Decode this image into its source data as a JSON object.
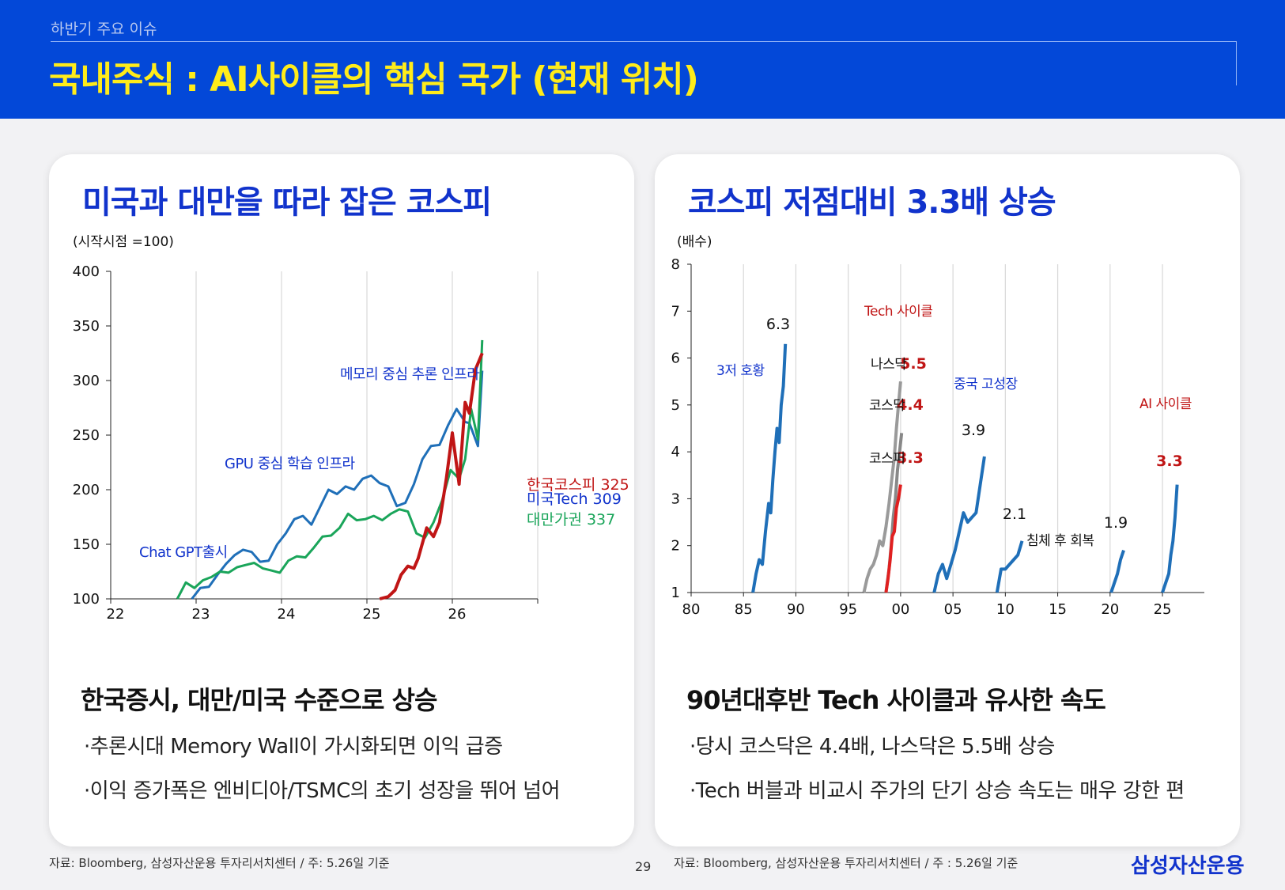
{
  "header": {
    "section": "하반기 주요 이슈",
    "title": "국내주식 : AI사이클의 핵심 국가 (현재 위치)"
  },
  "left": {
    "title": "미국과 대만을 따라 잡은 코스피",
    "summary": "한국증시, 대만/미국 수준으로 상승",
    "bullets": [
      "추론시대 Memory Wall이 가시화되면 이익 급증",
      "이익 증가폭은 엔비디아/TSMC의 초기 성장을 뛰어 넘어"
    ],
    "source": "자료: Bloomberg, 삼성자산운용 투자리서치센터 / 주: 5.26일 기준"
  },
  "right": {
    "title": "코스피 저점대비 3.3배 상승",
    "summary": "90년대후반 Tech 사이클과 유사한 속도",
    "bullets": [
      "당시 코스닥은 4.4배, 나스닥은 5.5배 상승",
      "Tech 버블과 비교시 주가의 단기 상승 속도는 매우 강한 편"
    ],
    "source": "자료: Bloomberg, 삼성자산운용 투자리서치센터 / 주 : 5.26일 기준"
  },
  "footer": {
    "page": "29",
    "brand": "삼성자산운용"
  },
  "chart_data": [
    {
      "type": "line",
      "unit_label": "(시작시점 =100)",
      "xlim": [
        22,
        27
      ],
      "ylim": [
        100,
        400
      ],
      "xticks": [
        "22",
        "23",
        "24",
        "25",
        "26"
      ],
      "yticks": [
        100,
        150,
        200,
        250,
        300,
        350,
        400
      ],
      "grid": "vertical",
      "series": [
        {
          "name": "미국Tech",
          "end_label": "미국Tech 309",
          "color": "#1f6fb8",
          "x": [
            22.95,
            23.05,
            23.15,
            23.25,
            23.35,
            23.45,
            23.55,
            23.65,
            23.75,
            23.85,
            23.95,
            24.05,
            24.15,
            24.25,
            24.35,
            24.45,
            24.55,
            24.65,
            24.75,
            24.85,
            24.95,
            25.05,
            25.15,
            25.25,
            25.35,
            25.45,
            25.55,
            25.65,
            25.75,
            25.85,
            25.95,
            26.05,
            26.15,
            26.2,
            26.3,
            26.35
          ],
          "y": [
            100,
            110,
            111,
            122,
            132,
            140,
            145,
            143,
            134,
            135,
            150,
            160,
            173,
            176,
            168,
            184,
            200,
            196,
            203,
            200,
            210,
            213,
            206,
            203,
            185,
            188,
            205,
            228,
            240,
            241,
            259,
            274,
            262,
            261,
            240,
            309
          ]
        },
        {
          "name": "대만가권",
          "end_label": "대만가권 337",
          "color": "#1aa55a",
          "x": [
            22.78,
            22.88,
            22.98,
            23.08,
            23.18,
            23.28,
            23.38,
            23.48,
            23.58,
            23.68,
            23.78,
            23.88,
            23.98,
            24.08,
            24.18,
            24.28,
            24.38,
            24.48,
            24.58,
            24.68,
            24.78,
            24.88,
            24.98,
            25.08,
            25.18,
            25.28,
            25.38,
            25.48,
            25.58,
            25.68,
            25.78,
            25.88,
            25.98,
            26.08,
            26.15,
            26.22,
            26.3,
            26.35
          ],
          "y": [
            100,
            115,
            110,
            117,
            120,
            125,
            124,
            129,
            131,
            133,
            128,
            126,
            124,
            135,
            139,
            138,
            147,
            157,
            158,
            165,
            178,
            172,
            173,
            176,
            172,
            178,
            182,
            180,
            160,
            156,
            170,
            190,
            218,
            210,
            228,
            274,
            246,
            337
          ]
        },
        {
          "name": "한국코스피",
          "end_label": "한국코스피 325",
          "color": "#c01515",
          "x": [
            25.15,
            25.25,
            25.33,
            25.4,
            25.48,
            25.55,
            25.6,
            25.7,
            25.78,
            25.85,
            25.93,
            26.0,
            26.08,
            26.15,
            26.2,
            26.27,
            26.35
          ],
          "y": [
            100,
            102,
            108,
            122,
            130,
            128,
            137,
            165,
            157,
            170,
            210,
            252,
            205,
            280,
            270,
            310,
            325
          ]
        }
      ],
      "annotations": [
        {
          "text": "Chat GPT출시",
          "color": "#1133cc"
        },
        {
          "text": "GPU 중심 학습 인프라",
          "color": "#1133cc"
        },
        {
          "text": "메모리 중심 추론 인프라",
          "color": "#1133cc"
        }
      ]
    },
    {
      "type": "line",
      "unit_label": "(배수)",
      "xlim": [
        80,
        129
      ],
      "ylim": [
        1,
        8
      ],
      "xticks": [
        "80",
        "85",
        "90",
        "95",
        "00",
        "05",
        "10",
        "15",
        "20",
        "25"
      ],
      "yticks": [
        1,
        2,
        3,
        4,
        5,
        6,
        7,
        8
      ],
      "grid": "vertical",
      "series": [
        {
          "name": "3저 호황",
          "end_value": "6.3",
          "color": "#1f6fb8",
          "x": [
            85.9,
            86.2,
            86.5,
            86.8,
            87.1,
            87.4,
            87.6,
            87.8,
            88.0,
            88.2,
            88.4,
            88.6,
            88.8,
            89.0
          ],
          "y": [
            1.0,
            1.4,
            1.7,
            1.6,
            2.3,
            2.9,
            2.7,
            3.4,
            4.0,
            4.5,
            4.2,
            5.0,
            5.4,
            6.3
          ]
        },
        {
          "name": "나스닥",
          "end_value": "5.5",
          "color": "#9a9a9a",
          "x": [
            96.5,
            96.8,
            97.1,
            97.4,
            97.7,
            98.0,
            98.3,
            98.6,
            98.9,
            99.2,
            99.4,
            99.6,
            99.8,
            100.0
          ],
          "y": [
            1.0,
            1.3,
            1.5,
            1.6,
            1.8,
            2.1,
            2.0,
            2.4,
            2.9,
            3.5,
            3.9,
            4.5,
            5.0,
            5.5
          ]
        },
        {
          "name": "코스닥",
          "end_value": "4.4",
          "color": "#888888",
          "x": [
            98.6,
            98.9,
            99.1,
            99.3,
            99.5,
            99.7,
            99.9,
            100.1
          ],
          "y": [
            1.0,
            1.5,
            2.0,
            2.6,
            3.0,
            3.6,
            4.0,
            4.4
          ]
        },
        {
          "name": "코스피",
          "end_value": "3.3",
          "color": "#e02020",
          "x": [
            98.6,
            98.8,
            99.0,
            99.2,
            99.4,
            99.6,
            99.8,
            100.0
          ],
          "y": [
            1.0,
            1.3,
            1.7,
            2.2,
            2.3,
            2.8,
            3.0,
            3.3
          ]
        },
        {
          "name": "중국 고성장",
          "end_value": "3.9",
          "color": "#1f6fb8",
          "x": [
            103.2,
            103.6,
            104.0,
            104.4,
            104.8,
            105.2,
            105.6,
            106.0,
            106.4,
            106.8,
            107.2,
            107.6,
            108.0
          ],
          "y": [
            1.0,
            1.4,
            1.6,
            1.3,
            1.6,
            1.9,
            2.3,
            2.7,
            2.5,
            2.6,
            2.7,
            3.3,
            3.9
          ]
        },
        {
          "name": "침체 후 회복",
          "end_value": "2.1",
          "color": "#1f6fb8",
          "x": [
            109.2,
            109.6,
            110.0,
            110.4,
            110.8,
            111.2,
            111.6
          ],
          "y": [
            1.0,
            1.5,
            1.5,
            1.6,
            1.7,
            1.8,
            2.1
          ]
        },
        {
          "name": "1.9",
          "end_value": "1.9",
          "color": "#1f6fb8",
          "x": [
            120.1,
            120.4,
            120.7,
            121.0,
            121.3
          ],
          "y": [
            1.0,
            1.2,
            1.4,
            1.7,
            1.9
          ]
        },
        {
          "name": "AI 사이클",
          "end_value": "3.3",
          "color": "#1f6fb8",
          "x": [
            125.0,
            125.3,
            125.6,
            125.8,
            126.0,
            126.2,
            126.4
          ],
          "y": [
            1.0,
            1.2,
            1.4,
            1.8,
            2.1,
            2.6,
            3.3
          ]
        }
      ],
      "annotations": [
        {
          "text": "3저 호황",
          "color": "#1133cc"
        },
        {
          "text": "Tech 사이클",
          "color": "#c01515"
        },
        {
          "text": "나스닥",
          "color": "#111111"
        },
        {
          "text": "코스닥",
          "color": "#111111"
        },
        {
          "text": "코스피",
          "color": "#111111"
        },
        {
          "text": "중국 고성장",
          "color": "#1133cc"
        },
        {
          "text": "AI 사이클",
          "color": "#c01515"
        },
        {
          "text": "침체 후 회복",
          "color": "#111111"
        }
      ]
    }
  ]
}
